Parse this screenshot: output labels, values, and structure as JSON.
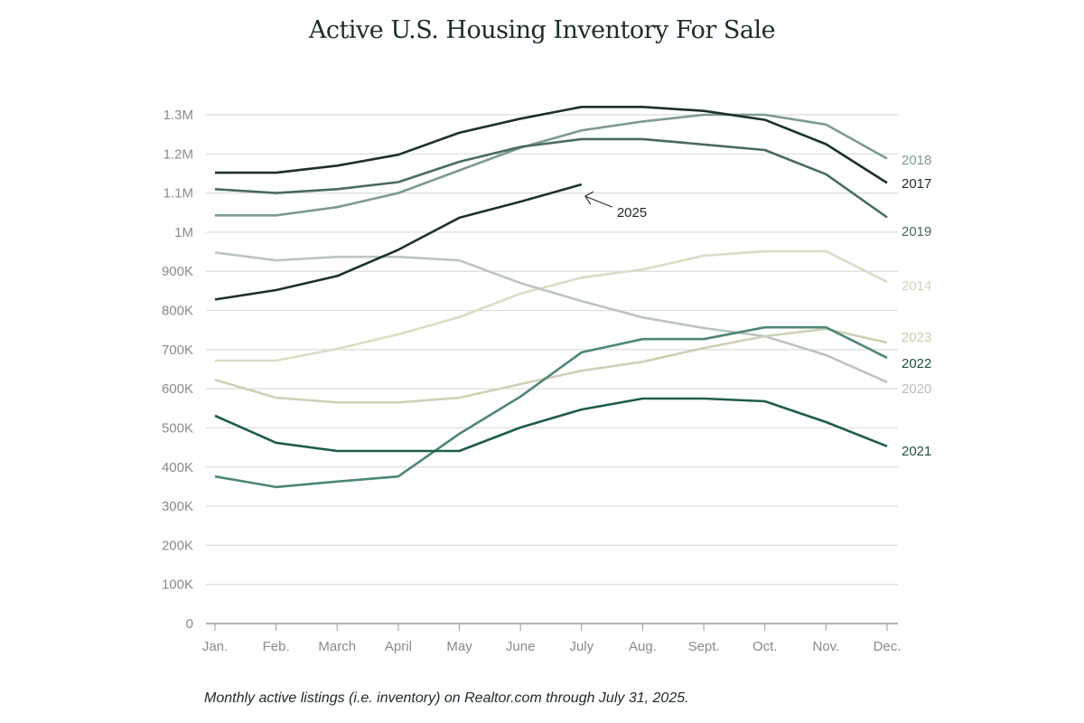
{
  "chart_data": {
    "type": "line",
    "title": "Active U.S. Housing Inventory For Sale",
    "caption": "Monthly active listings (i.e. inventory) on Realtor.com through July 31, 2025.",
    "xlabel": "",
    "ylabel": "",
    "ylim": [
      0,
      1300000
    ],
    "grid": true,
    "y_ticks": [
      {
        "value": 0,
        "label": "0"
      },
      {
        "value": 100000,
        "label": "100K"
      },
      {
        "value": 200000,
        "label": "200K"
      },
      {
        "value": 300000,
        "label": "300K"
      },
      {
        "value": 400000,
        "label": "400K"
      },
      {
        "value": 500000,
        "label": "500K"
      },
      {
        "value": 600000,
        "label": "600K"
      },
      {
        "value": 700000,
        "label": "700K"
      },
      {
        "value": 800000,
        "label": "800K"
      },
      {
        "value": 900000,
        "label": "900K"
      },
      {
        "value": 1000000,
        "label": "1M"
      },
      {
        "value": 1100000,
        "label": "1.1M"
      },
      {
        "value": 1200000,
        "label": "1.2M"
      },
      {
        "value": 1300000,
        "label": "1.3M"
      }
    ],
    "categories": [
      "Jan.",
      "Feb.",
      "March",
      "April",
      "May",
      "June",
      "July",
      "Aug.",
      "Sept.",
      "Oct.",
      "Nov.",
      "Dec."
    ],
    "legend_placement": "right (inline labels at line ends)",
    "series": [
      {
        "name": "2014",
        "color": "#dcdcc6",
        "label_color": "#d3d3bd",
        "values": [
          672000,
          672000,
          702000,
          739000,
          783000,
          843000,
          884000,
          905000,
          940000,
          951000,
          951000,
          873000
        ]
      },
      {
        "name": "2020",
        "color": "#bcc4c1",
        "label_color": "#b7bfbc",
        "values": [
          948000,
          928000,
          937000,
          937000,
          928000,
          870000,
          824000,
          782000,
          755000,
          734000,
          686000,
          617000
        ]
      },
      {
        "name": "2023",
        "color": "#cfd0b6",
        "label_color": "#c9caae",
        "values": [
          623000,
          577000,
          565000,
          565000,
          577000,
          612000,
          646000,
          669000,
          704000,
          734000,
          753000,
          718000
        ]
      },
      {
        "name": "2018",
        "color": "#7e9a8f",
        "label_color": "#7e9a8f",
        "values": [
          1043000,
          1043000,
          1064000,
          1100000,
          1158000,
          1216000,
          1260000,
          1283000,
          1300000,
          1300000,
          1275000,
          1188000
        ]
      },
      {
        "name": "2022",
        "color": "#4e8577",
        "label_color": "#1f4f43",
        "values": [
          376000,
          349000,
          363000,
          376000,
          485000,
          580000,
          693000,
          727000,
          727000,
          757000,
          757000,
          679000
        ]
      },
      {
        "name": "2021",
        "color": "#1f5b4d",
        "label_color": "#1f4f43",
        "values": [
          531000,
          462000,
          441000,
          441000,
          441000,
          501000,
          547000,
          575000,
          575000,
          568000,
          515000,
          453000
        ]
      },
      {
        "name": "2019",
        "color": "#4a6a5f",
        "label_color": "#4a6a5f",
        "values": [
          1110000,
          1100000,
          1110000,
          1128000,
          1180000,
          1218000,
          1238000,
          1238000,
          1224000,
          1210000,
          1148000,
          1038000
        ]
      },
      {
        "name": "2017",
        "color": "#1b3129",
        "label_color": "#1b2e26",
        "values": [
          1152000,
          1152000,
          1170000,
          1198000,
          1254000,
          1290000,
          1320000,
          1320000,
          1310000,
          1287000,
          1225000,
          1126000
        ]
      },
      {
        "name": "2025",
        "color": "#1b3129",
        "label_color": "#1e2a26",
        "values": [
          828000,
          852000,
          888000,
          955000,
          1037000,
          1078000,
          1122000,
          null,
          null,
          null,
          null,
          null
        ]
      }
    ],
    "annotations": [
      {
        "text": "2025",
        "target_series": "2025",
        "target_month": "July",
        "arrow": true
      }
    ]
  }
}
